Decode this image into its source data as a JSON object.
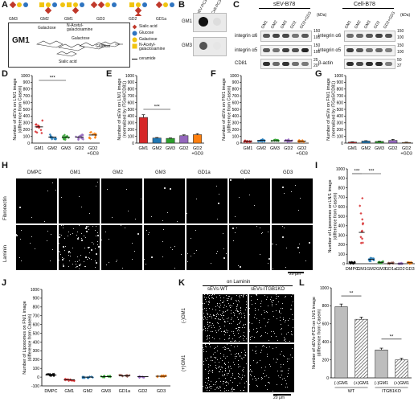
{
  "panels": {
    "A": "A",
    "B": "B",
    "C": "C",
    "D": "D",
    "E": "E",
    "F": "F",
    "G": "G",
    "H": "H",
    "I": "I",
    "J": "J",
    "K": "K",
    "L": "L"
  },
  "panelA": {
    "top_labels": [
      "GM3",
      "GM2",
      "GM1",
      "GD3",
      "GD2",
      "GD1a"
    ],
    "main_label": "GM1",
    "structure_labels": {
      "galactose_top": "Galactose",
      "nacgal": "N-Acetyl-\ngalactosamine",
      "galactose_mid": "Galactose",
      "glucose": "Glucose",
      "sialic": "Sialic acid"
    },
    "legend": [
      {
        "label": "Sialic acid",
        "color": "#c0392b",
        "shape": "diamond"
      },
      {
        "label": "Glucose",
        "color": "#2e74c0",
        "shape": "circle"
      },
      {
        "label": "Galactose",
        "color": "#f1c40f",
        "shape": "circle"
      },
      {
        "label": "N-Acetyl-galactosamine",
        "color": "#f1c40f",
        "shape": "square"
      },
      {
        "label": "ceramide",
        "color": "#000000",
        "shape": "line"
      }
    ]
  },
  "panelB": {
    "columns": [
      "sEV-PC3",
      "Cell-PC3"
    ],
    "rows": [
      "GM1",
      "GM3"
    ]
  },
  "panelC": {
    "group1_title": "sEV-B78",
    "group2_title": "Cell-B78",
    "lanes": [
      "GM1",
      "GM2",
      "GM3",
      "GD2",
      "GD2+GD3"
    ],
    "unit": "(kDa)",
    "left_blots": [
      "integrin α6",
      "integrin α5",
      "CD81"
    ],
    "right_blots": [
      "integrin α6",
      "integrin α5",
      "β-actin"
    ],
    "mw_left": [
      "150",
      "100",
      "150",
      "100",
      "25",
      "20"
    ],
    "mw_right": [
      "150",
      "100",
      "150",
      "100",
      "50",
      "37"
    ]
  },
  "panelH": {
    "columns": [
      "DMPC",
      "GM1",
      "GM2",
      "GM3",
      "GD1a",
      "GD2",
      "GD3"
    ],
    "rows": [
      "Fibronectin",
      "Laminin"
    ],
    "scalebar": "20 μm"
  },
  "panelK": {
    "header": "on Laminin",
    "columns": [
      "sEVs-WT",
      "sEVs-ITGB1KO"
    ],
    "rows": [
      "(-)GM1",
      "(+)GM1"
    ],
    "scalebar": "20 μm"
  },
  "chart_data": [
    {
      "id": "D",
      "type": "scatter",
      "ylabel": "Number of sEVs on LN/1 image\n(difference from Casein)",
      "categories": [
        "GM1",
        "GM2",
        "GM3",
        "GD2",
        "GD2\n+GD3"
      ],
      "ylim": [
        0,
        1000
      ],
      "yticks": [
        0,
        100,
        200,
        300,
        400,
        500,
        600,
        700,
        800,
        900,
        1000
      ],
      "means": [
        240,
        90,
        85,
        90,
        120
      ],
      "colors": [
        "#d62728",
        "#1f77b4",
        "#2ca02c",
        "#9467bd",
        "#ff7f0e"
      ],
      "significance": [
        {
          "from": 0,
          "to": 2,
          "label": "***"
        }
      ]
    },
    {
      "id": "E",
      "type": "bar",
      "ylabel": "Number of sEVs on LN/1 image\n(normalized by ITGα6/CD81)",
      "categories": [
        "GM1",
        "GM2",
        "GM3",
        "GD2",
        "GD2\n+GD3"
      ],
      "ylim": [
        0,
        1000
      ],
      "yticks": [
        0,
        100,
        200,
        300,
        400,
        500,
        600,
        700,
        800,
        900,
        1000
      ],
      "values": [
        380,
        75,
        70,
        110,
        125
      ],
      "errors": [
        40,
        8,
        6,
        12,
        15
      ],
      "colors": [
        "#d62728",
        "#1f77b4",
        "#2ca02c",
        "#9467bd",
        "#ff7f0e"
      ],
      "significance": [
        {
          "from": 0,
          "to": 2,
          "label": "***"
        }
      ]
    },
    {
      "id": "F",
      "type": "scatter",
      "ylabel": "Number of sEVs on FN/1 image\n(difference from Casein)",
      "categories": [
        "GM1",
        "GM2",
        "GM3",
        "GD2",
        "GD2\n+GD3"
      ],
      "ylim": [
        0,
        1000
      ],
      "yticks": [
        0,
        100,
        200,
        300,
        400,
        500,
        600,
        700,
        800,
        900,
        1000
      ],
      "means": [
        30,
        40,
        35,
        38,
        30
      ],
      "colors": [
        "#d62728",
        "#1f77b4",
        "#2ca02c",
        "#9467bd",
        "#ff7f0e"
      ]
    },
    {
      "id": "G",
      "type": "bar",
      "ylabel": "Number of sEVs on FN/1 image\n(normalized by ITGα5/CD81)",
      "categories": [
        "GM1",
        "GM2",
        "GM3",
        "GD2",
        "GD2\n+GD3"
      ],
      "ylim": [
        0,
        1000
      ],
      "yticks": [
        0,
        100,
        200,
        300,
        400,
        500,
        600,
        700,
        800,
        900,
        1000
      ],
      "values": [
        15,
        30,
        25,
        40,
        10
      ],
      "errors": [
        4,
        6,
        5,
        15,
        4
      ],
      "colors": [
        "#d62728",
        "#1f77b4",
        "#2ca02c",
        "#9467bd",
        "#ff7f0e"
      ]
    },
    {
      "id": "I",
      "type": "scatter",
      "ylabel": "Number of Liposomes on LN/1 image\n(difference from Casein)",
      "categories": [
        "DMPC",
        "GM1",
        "GM2",
        "GM3",
        "GD1a",
        "GD2",
        "GD3"
      ],
      "ylim": [
        0,
        1000
      ],
      "yticks": [
        0,
        100,
        200,
        300,
        400,
        500,
        600,
        700,
        800,
        900,
        1000
      ],
      "means": [
        10,
        330,
        45,
        15,
        5,
        0,
        10
      ],
      "colors": [
        "#000000",
        "#d62728",
        "#1f77b4",
        "#2ca02c",
        "#8c564b",
        "#9467bd",
        "#ff7f0e"
      ],
      "significance": [
        {
          "from": 0,
          "to": 1,
          "label": "***"
        },
        {
          "from": 1,
          "to": 3,
          "label": "***"
        }
      ]
    },
    {
      "id": "J",
      "type": "scatter",
      "ylabel": "Number of Liposomes on FN/1 image\n(difference from Casein)",
      "categories": [
        "DMPC",
        "GM1",
        "GM2",
        "GM3",
        "GD1a",
        "GD2",
        "GD3"
      ],
      "ylim": [
        -100,
        1000
      ],
      "yticks": [
        -100,
        0,
        100,
        200,
        300,
        400,
        500,
        600,
        700,
        800,
        900,
        1000
      ],
      "means": [
        25,
        -30,
        0,
        5,
        15,
        5,
        10
      ],
      "colors": [
        "#000000",
        "#d62728",
        "#1f77b4",
        "#2ca02c",
        "#8c564b",
        "#9467bd",
        "#ff7f0e"
      ]
    },
    {
      "id": "L",
      "type": "bar",
      "ylabel": "Number of sEVs-PC3 on LN/1 image\n(difference from Casein)",
      "categories": [
        "(-)GM1",
        "(+)GM1",
        "(-)GM1",
        "(+)GM1"
      ],
      "groups": [
        "WT",
        "ITGB1KO"
      ],
      "ylim": [
        0,
        1000
      ],
      "yticks": [
        0,
        200,
        400,
        600,
        800,
        1000
      ],
      "values": [
        790,
        650,
        310,
        200
      ],
      "errors": [
        30,
        25,
        20,
        18
      ],
      "hatched": [
        false,
        true,
        false,
        true
      ],
      "significance": [
        {
          "from": 0,
          "to": 1,
          "label": "**"
        },
        {
          "from": 2,
          "to": 3,
          "label": "**"
        }
      ]
    }
  ]
}
